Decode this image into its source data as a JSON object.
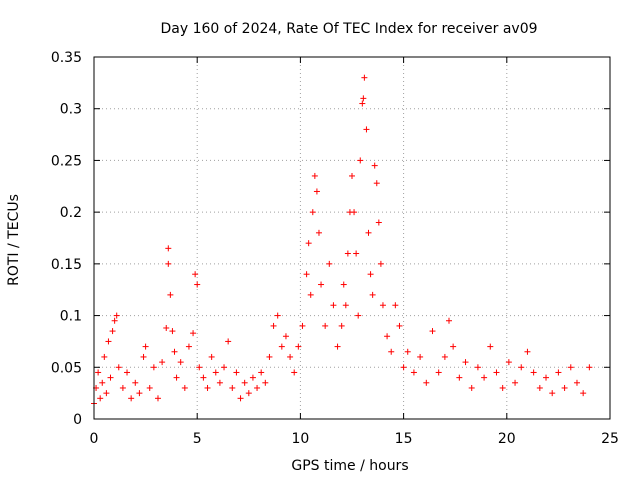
{
  "chart_data": {
    "type": "scatter",
    "title": "Day 160 of 2024, Rate Of TEC Index for receiver av09",
    "xlabel": "GPS time / hours",
    "ylabel": "ROTI / TECUs",
    "xlim": [
      0,
      25
    ],
    "ylim": [
      0,
      0.35
    ],
    "x_ticks": [
      "0",
      "5",
      "10",
      "15",
      "20",
      "25"
    ],
    "y_ticks": [
      "0",
      "0.05",
      "0.1",
      "0.15",
      "0.2",
      "0.25",
      "0.3",
      "0.35"
    ],
    "grid": true,
    "legend": "none",
    "marker": "plus",
    "color": "#ff0000",
    "series": [
      {
        "values": [
          [
            0.0,
            0.015
          ],
          [
            0.1,
            0.03
          ],
          [
            0.2,
            0.045
          ],
          [
            0.3,
            0.02
          ],
          [
            0.4,
            0.035
          ],
          [
            0.5,
            0.06
          ],
          [
            0.6,
            0.025
          ],
          [
            0.7,
            0.075
          ],
          [
            0.8,
            0.04
          ],
          [
            0.9,
            0.085
          ],
          [
            1.0,
            0.095
          ],
          [
            1.1,
            0.1
          ],
          [
            1.2,
            0.05
          ],
          [
            1.4,
            0.03
          ],
          [
            1.6,
            0.045
          ],
          [
            1.8,
            0.02
          ],
          [
            2.0,
            0.035
          ],
          [
            2.2,
            0.025
          ],
          [
            2.4,
            0.06
          ],
          [
            2.5,
            0.07
          ],
          [
            2.7,
            0.03
          ],
          [
            2.9,
            0.05
          ],
          [
            3.1,
            0.02
          ],
          [
            3.3,
            0.055
          ],
          [
            3.5,
            0.088
          ],
          [
            3.6,
            0.165
          ],
          [
            3.6,
            0.15
          ],
          [
            3.7,
            0.12
          ],
          [
            3.8,
            0.085
          ],
          [
            3.9,
            0.065
          ],
          [
            4.0,
            0.04
          ],
          [
            4.2,
            0.055
          ],
          [
            4.4,
            0.03
          ],
          [
            4.6,
            0.07
          ],
          [
            4.8,
            0.083
          ],
          [
            4.9,
            0.14
          ],
          [
            5.0,
            0.13
          ],
          [
            5.1,
            0.05
          ],
          [
            5.3,
            0.04
          ],
          [
            5.5,
            0.03
          ],
          [
            5.7,
            0.06
          ],
          [
            5.9,
            0.045
          ],
          [
            6.1,
            0.035
          ],
          [
            6.3,
            0.05
          ],
          [
            6.5,
            0.075
          ],
          [
            6.7,
            0.03
          ],
          [
            6.9,
            0.045
          ],
          [
            7.1,
            0.02
          ],
          [
            7.3,
            0.035
          ],
          [
            7.5,
            0.025
          ],
          [
            7.7,
            0.04
          ],
          [
            7.9,
            0.03
          ],
          [
            8.1,
            0.045
          ],
          [
            8.3,
            0.035
          ],
          [
            8.5,
            0.06
          ],
          [
            8.7,
            0.09
          ],
          [
            8.9,
            0.1
          ],
          [
            9.1,
            0.07
          ],
          [
            9.3,
            0.08
          ],
          [
            9.5,
            0.06
          ],
          [
            9.7,
            0.045
          ],
          [
            9.9,
            0.07
          ],
          [
            10.1,
            0.09
          ],
          [
            10.3,
            0.14
          ],
          [
            10.4,
            0.17
          ],
          [
            10.5,
            0.12
          ],
          [
            10.6,
            0.2
          ],
          [
            10.7,
            0.235
          ],
          [
            10.8,
            0.22
          ],
          [
            10.9,
            0.18
          ],
          [
            11.0,
            0.13
          ],
          [
            11.2,
            0.09
          ],
          [
            11.4,
            0.15
          ],
          [
            11.6,
            0.11
          ],
          [
            11.8,
            0.07
          ],
          [
            12.0,
            0.09
          ],
          [
            12.1,
            0.13
          ],
          [
            12.2,
            0.11
          ],
          [
            12.3,
            0.16
          ],
          [
            12.4,
            0.2
          ],
          [
            12.5,
            0.235
          ],
          [
            12.6,
            0.2
          ],
          [
            12.7,
            0.16
          ],
          [
            12.8,
            0.1
          ],
          [
            12.9,
            0.25
          ],
          [
            13.0,
            0.305
          ],
          [
            13.05,
            0.31
          ],
          [
            13.1,
            0.33
          ],
          [
            13.2,
            0.28
          ],
          [
            13.3,
            0.18
          ],
          [
            13.4,
            0.14
          ],
          [
            13.5,
            0.12
          ],
          [
            13.6,
            0.245
          ],
          [
            13.7,
            0.228
          ],
          [
            13.8,
            0.19
          ],
          [
            13.9,
            0.15
          ],
          [
            14.0,
            0.11
          ],
          [
            14.2,
            0.08
          ],
          [
            14.4,
            0.065
          ],
          [
            14.6,
            0.11
          ],
          [
            14.8,
            0.09
          ],
          [
            15.0,
            0.05
          ],
          [
            15.2,
            0.065
          ],
          [
            15.5,
            0.045
          ],
          [
            15.8,
            0.06
          ],
          [
            16.1,
            0.035
          ],
          [
            16.4,
            0.085
          ],
          [
            16.7,
            0.045
          ],
          [
            17.0,
            0.06
          ],
          [
            17.2,
            0.095
          ],
          [
            17.4,
            0.07
          ],
          [
            17.7,
            0.04
          ],
          [
            18.0,
            0.055
          ],
          [
            18.3,
            0.03
          ],
          [
            18.6,
            0.05
          ],
          [
            18.9,
            0.04
          ],
          [
            19.2,
            0.07
          ],
          [
            19.5,
            0.045
          ],
          [
            19.8,
            0.03
          ],
          [
            20.1,
            0.055
          ],
          [
            20.4,
            0.035
          ],
          [
            20.7,
            0.05
          ],
          [
            21.0,
            0.065
          ],
          [
            21.3,
            0.045
          ],
          [
            21.6,
            0.03
          ],
          [
            21.9,
            0.04
          ],
          [
            22.2,
            0.025
          ],
          [
            22.5,
            0.045
          ],
          [
            22.8,
            0.03
          ],
          [
            23.1,
            0.05
          ],
          [
            23.4,
            0.035
          ],
          [
            23.7,
            0.025
          ],
          [
            24.0,
            0.05
          ]
        ]
      }
    ]
  }
}
